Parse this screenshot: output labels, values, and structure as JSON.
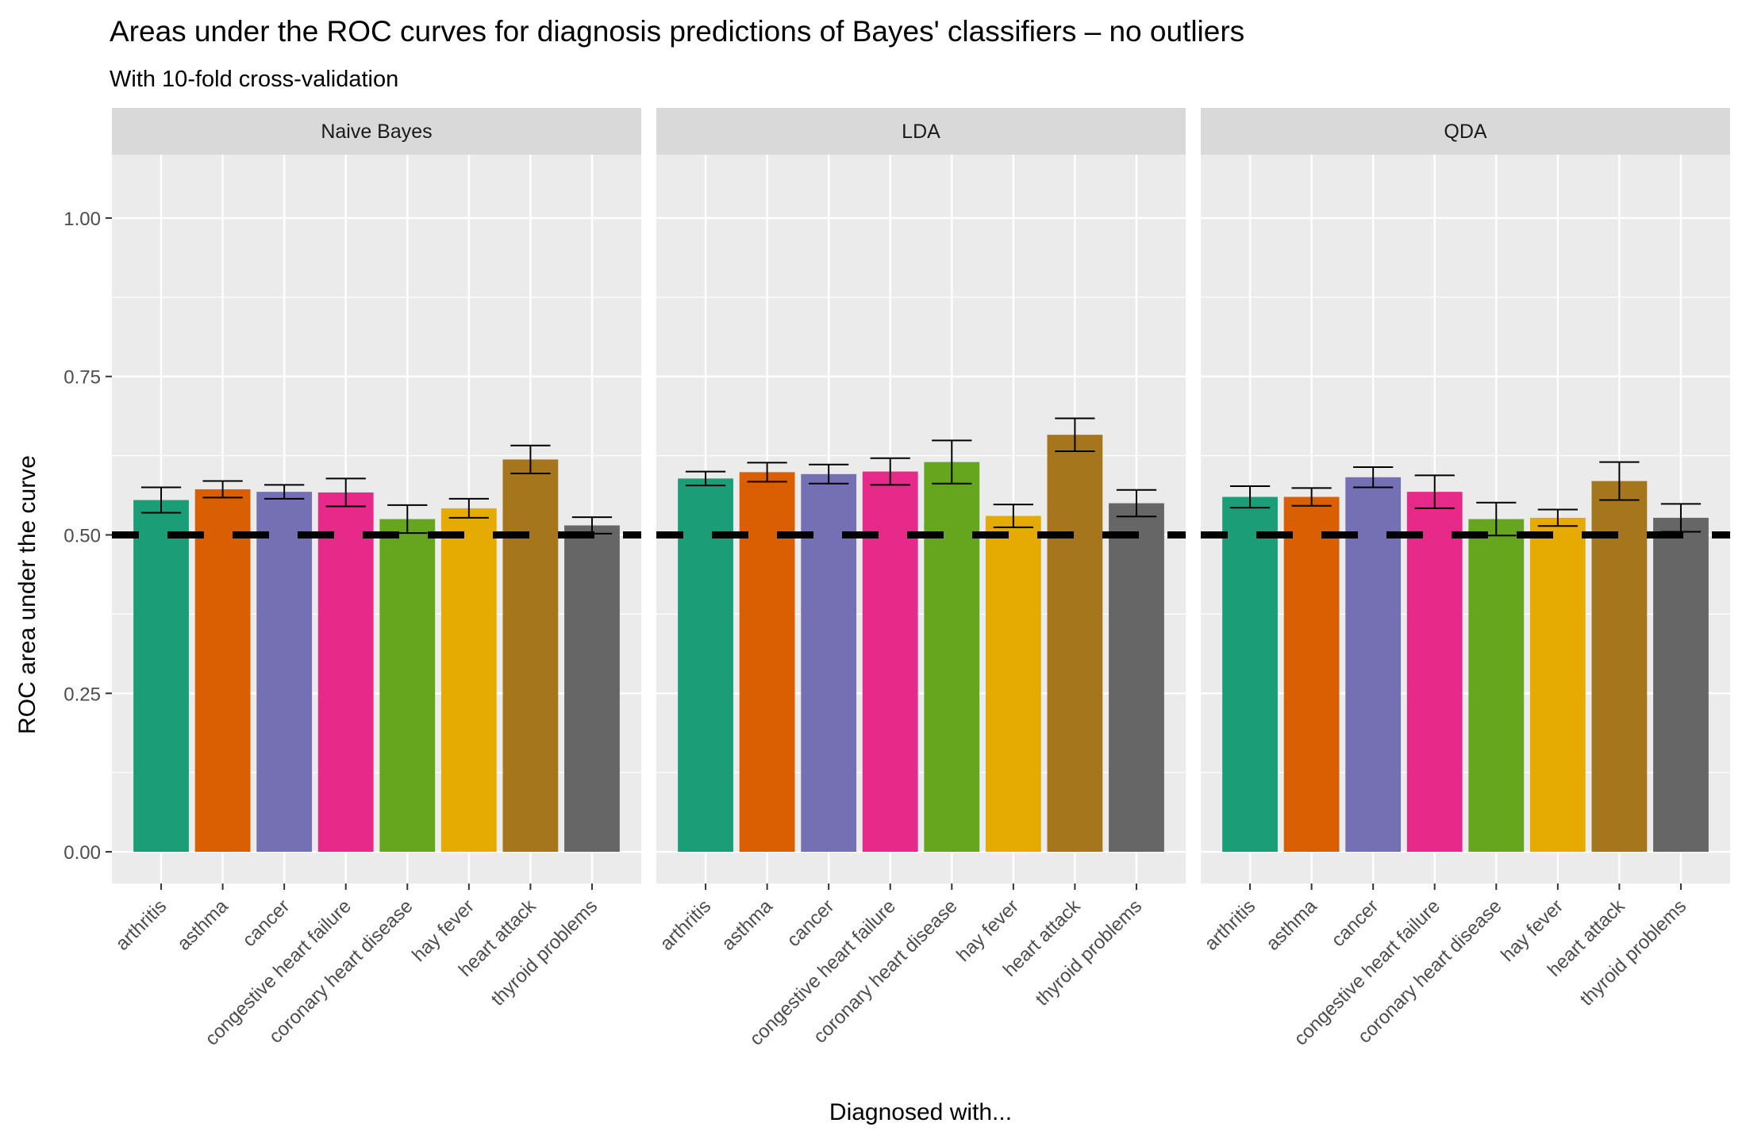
{
  "chart_data": {
    "type": "bar",
    "title": "Areas under the ROC curves for diagnosis predictions of Bayes' classifiers – no outliers",
    "subtitle": "With 10-fold cross-validation",
    "xlabel": "Diagnosed with...",
    "ylabel": "ROC area under the curve",
    "ylim": [
      -0.05,
      1.1
    ],
    "yticks": [
      0.0,
      0.25,
      0.5,
      0.75,
      1.0
    ],
    "ytick_labels": [
      "0.00",
      "0.25",
      "0.50",
      "0.75",
      "1.00"
    ],
    "reference_line": 0.5,
    "grid": true,
    "categories": [
      "arthritis",
      "asthma",
      "cancer",
      "congestive heart failure",
      "coronary heart disease",
      "hay fever",
      "heart attack",
      "thyroid problems"
    ],
    "colors": [
      "#1b9e77",
      "#d95f02",
      "#7570b3",
      "#e7298a",
      "#66a61e",
      "#e6ab02",
      "#a6761d",
      "#666666"
    ],
    "panels": [
      {
        "name": "Naive Bayes",
        "values": [
          0.555,
          0.572,
          0.568,
          0.567,
          0.525,
          0.542,
          0.619,
          0.515
        ],
        "error_low": [
          0.535,
          0.559,
          0.557,
          0.545,
          0.503,
          0.527,
          0.597,
          0.502
        ],
        "error_high": [
          0.575,
          0.585,
          0.579,
          0.589,
          0.547,
          0.557,
          0.641,
          0.528
        ]
      },
      {
        "name": "LDA",
        "values": [
          0.589,
          0.599,
          0.596,
          0.6,
          0.615,
          0.53,
          0.658,
          0.55
        ],
        "error_low": [
          0.578,
          0.584,
          0.581,
          0.579,
          0.581,
          0.512,
          0.632,
          0.529
        ],
        "error_high": [
          0.6,
          0.614,
          0.611,
          0.621,
          0.649,
          0.548,
          0.684,
          0.571
        ]
      },
      {
        "name": "QDA",
        "values": [
          0.56,
          0.56,
          0.591,
          0.568,
          0.525,
          0.527,
          0.585,
          0.527
        ],
        "error_low": [
          0.543,
          0.546,
          0.575,
          0.542,
          0.499,
          0.514,
          0.555,
          0.505
        ],
        "error_high": [
          0.577,
          0.574,
          0.607,
          0.594,
          0.551,
          0.54,
          0.615,
          0.549
        ]
      }
    ]
  }
}
